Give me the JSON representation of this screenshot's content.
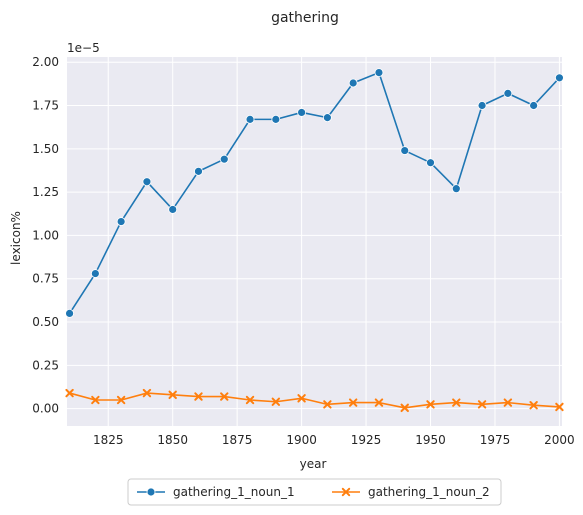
{
  "chart_data": {
    "type": "line",
    "title": "gathering",
    "xlabel": "year",
    "ylabel": "lexicon%",
    "y_offset_label": "1e−5",
    "xlim": [
      1809,
      2001
    ],
    "ylim": [
      -0.1,
      2.03
    ],
    "x_ticks": [
      1825,
      1850,
      1875,
      1900,
      1925,
      1950,
      1975,
      2000
    ],
    "x_tick_labels": [
      "1825",
      "1850",
      "1875",
      "1900",
      "1925",
      "1950",
      "1975",
      "2000"
    ],
    "y_ticks": [
      0.0,
      0.25,
      0.5,
      0.75,
      1.0,
      1.25,
      1.5,
      1.75,
      2.0
    ],
    "y_tick_labels": [
      "0.00",
      "0.25",
      "0.50",
      "0.75",
      "1.00",
      "1.25",
      "1.50",
      "1.75",
      "2.00"
    ],
    "grid": true,
    "legend_placement": "bottom-center",
    "x": [
      1810,
      1820,
      1830,
      1840,
      1850,
      1860,
      1870,
      1880,
      1890,
      1900,
      1910,
      1920,
      1930,
      1940,
      1950,
      1960,
      1970,
      1980,
      1990,
      2000
    ],
    "series": [
      {
        "name": "gathering_1_noun_1",
        "color": "#1f77b4",
        "marker": "circle",
        "values": [
          0.55,
          0.78,
          1.08,
          1.31,
          1.15,
          1.37,
          1.44,
          1.67,
          1.67,
          1.71,
          1.68,
          1.88,
          1.94,
          1.49,
          1.42,
          1.27,
          1.75,
          1.82,
          1.75,
          1.91
        ]
      },
      {
        "name": "gathering_1_noun_2",
        "color": "#ff7f0e",
        "marker": "x",
        "values": [
          0.09,
          0.05,
          0.05,
          0.09,
          0.08,
          0.07,
          0.07,
          0.05,
          0.04,
          0.06,
          0.025,
          0.035,
          0.035,
          0.005,
          0.025,
          0.035,
          0.025,
          0.035,
          0.02,
          0.01
        ]
      }
    ],
    "background_color": "#eaeaf2"
  }
}
